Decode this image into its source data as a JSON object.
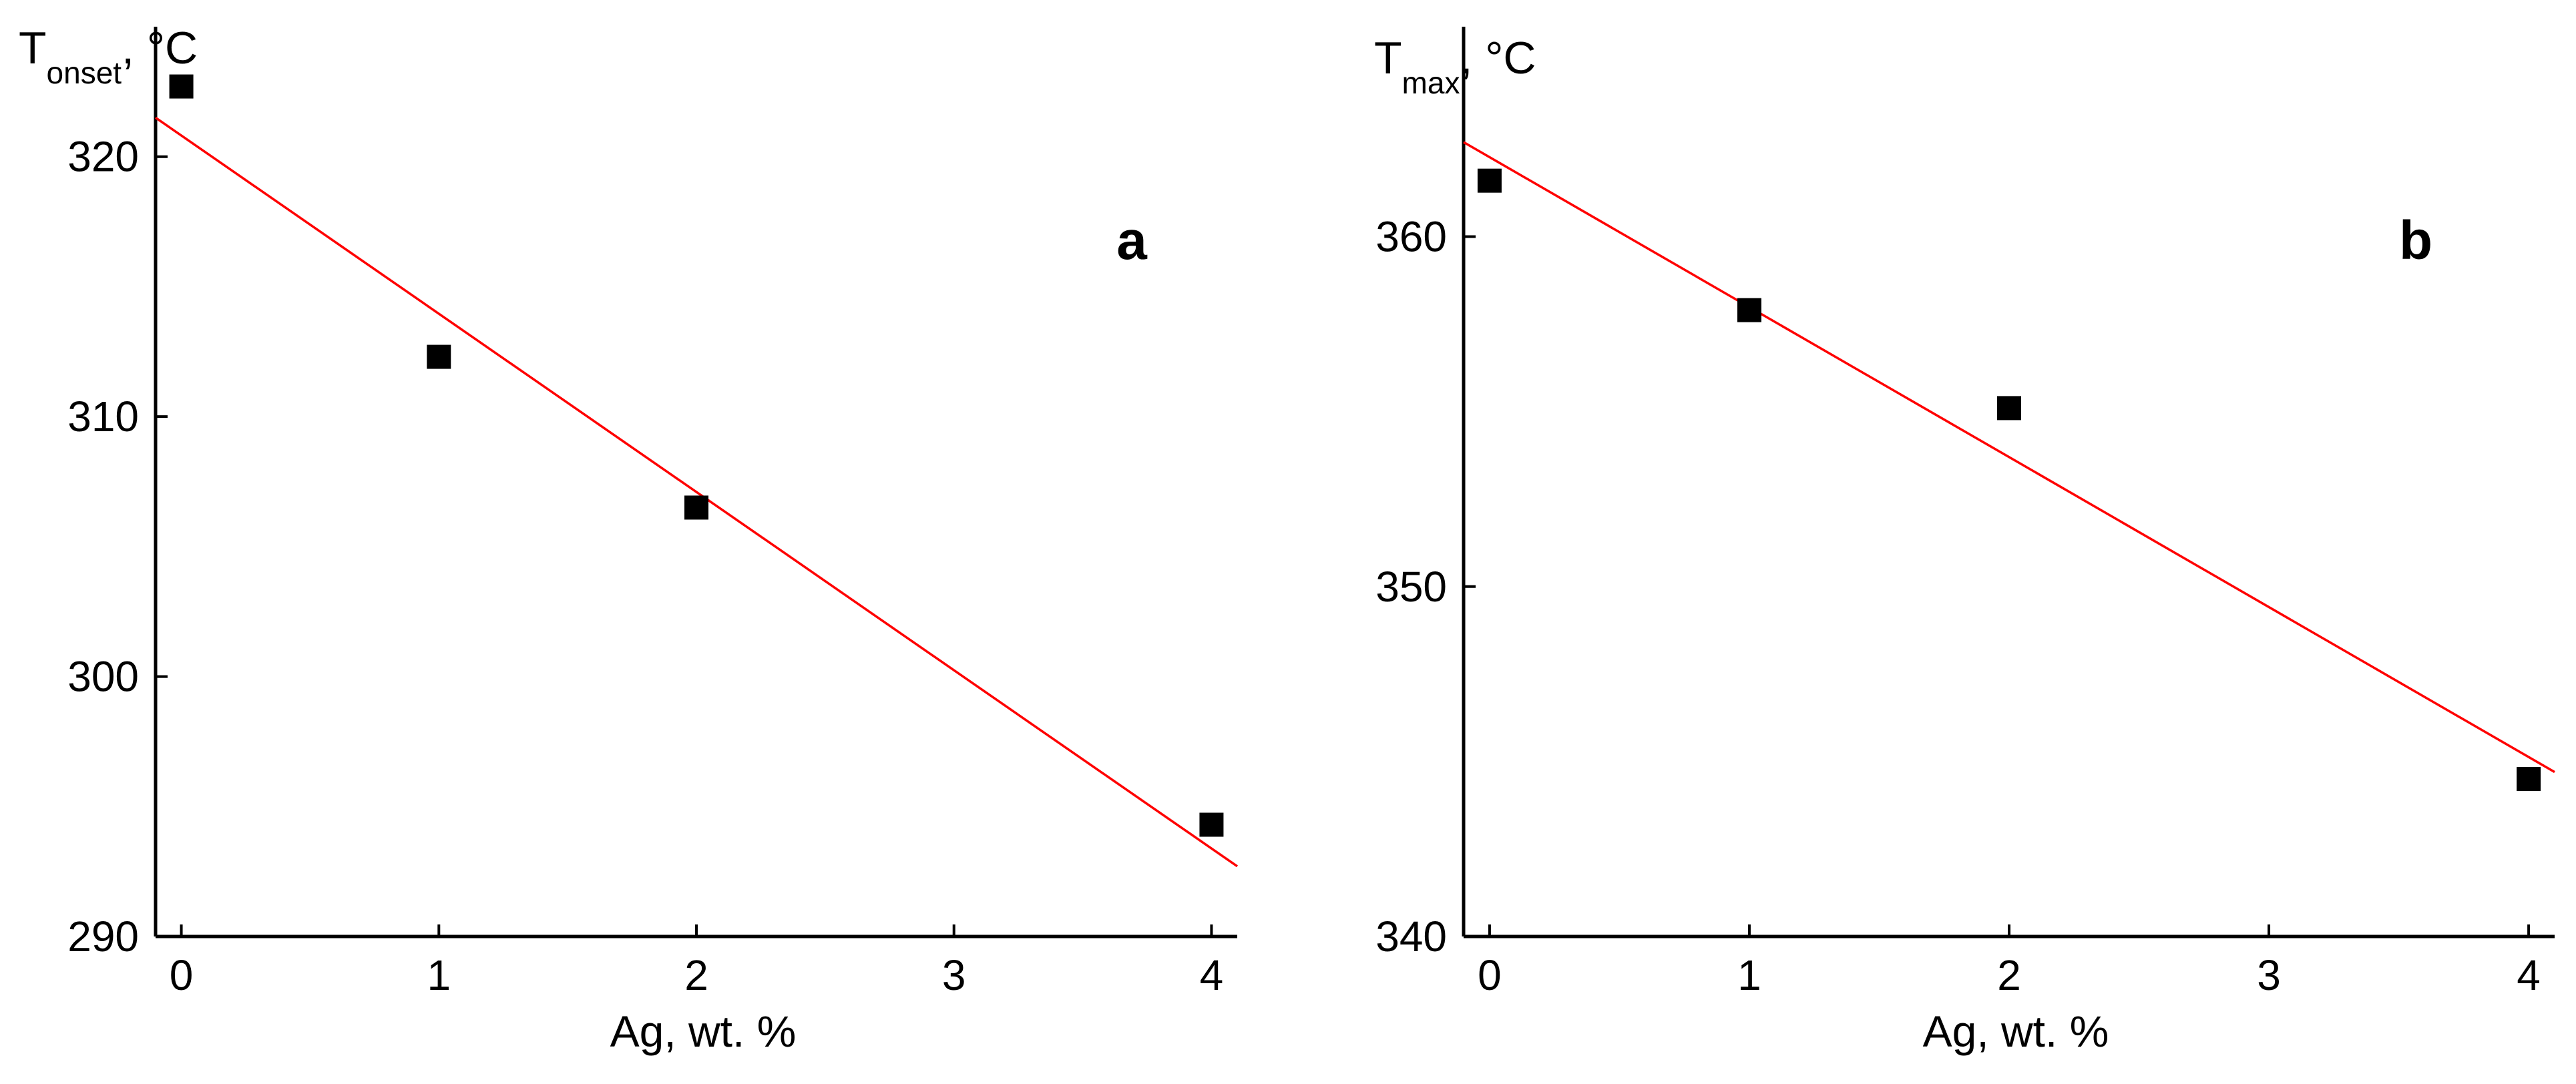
{
  "colors": {
    "points": "#000000",
    "fit_line": "#ff0000",
    "axes": "#000000"
  },
  "chart_data": [
    {
      "type": "scatter",
      "panel_label": "a",
      "ylabel": {
        "main": "T",
        "sub": "onset",
        "unit": ", °C"
      },
      "xlabel": "Ag, wt. %",
      "xlim": [
        -0.1,
        4.1
      ],
      "ylim": [
        290,
        325
      ],
      "xticks": [
        0,
        1,
        2,
        3,
        4
      ],
      "yticks": [
        290,
        300,
        310,
        320
      ],
      "xtick_labels": [
        "0",
        "1",
        "2",
        "3",
        "4"
      ],
      "ytick_labels": [
        "290",
        "300",
        "310",
        "320"
      ],
      "grid": false,
      "points": {
        "x": [
          0,
          1,
          2,
          4
        ],
        "y": [
          322.7,
          312.3,
          306.5,
          294.3
        ]
      },
      "fit_line": {
        "x": [
          -0.1,
          4.1
        ],
        "y": [
          321.5,
          292.7
        ]
      }
    },
    {
      "type": "scatter",
      "panel_label": "b",
      "ylabel": {
        "main": "T",
        "sub": "max",
        "unit": ", °C"
      },
      "xlabel": "Ag, wt. %",
      "xlim": [
        -0.1,
        4.1
      ],
      "ylim": [
        340,
        366
      ],
      "xticks": [
        0,
        1,
        2,
        3,
        4
      ],
      "yticks": [
        340,
        350,
        360
      ],
      "xtick_labels": [
        "0",
        "1",
        "2",
        "3",
        "4"
      ],
      "ytick_labels": [
        "340",
        "350",
        "360"
      ],
      "grid": false,
      "points": {
        "x": [
          0,
          1,
          2,
          4
        ],
        "y": [
          361.6,
          357.9,
          355.1,
          344.5
        ]
      },
      "fit_line": {
        "x": [
          -0.1,
          4.1
        ],
        "y": [
          362.7,
          344.7
        ]
      }
    }
  ]
}
